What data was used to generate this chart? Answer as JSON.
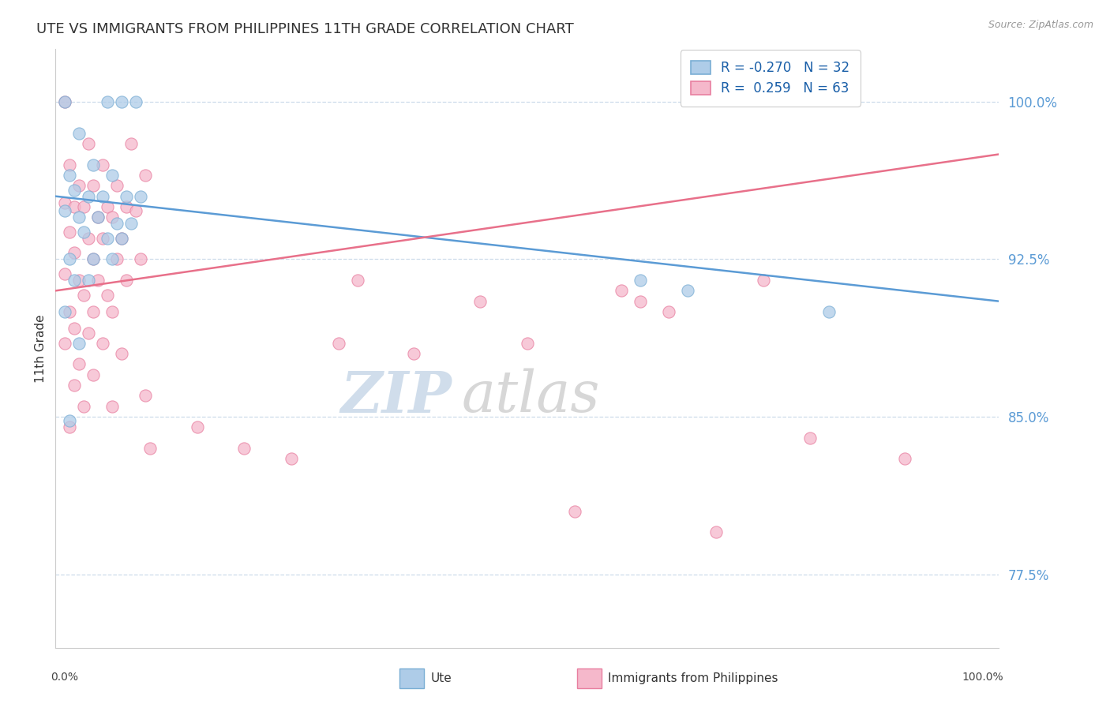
{
  "title": "UTE VS IMMIGRANTS FROM PHILIPPINES 11TH GRADE CORRELATION CHART",
  "source": "Source: ZipAtlas.com",
  "ylabel": "11th Grade",
  "xlim": [
    0.0,
    100.0
  ],
  "ylim": [
    74.0,
    102.5
  ],
  "ytick_labels": [
    "77.5%",
    "85.0%",
    "92.5%",
    "100.0%"
  ],
  "ytick_values": [
    77.5,
    85.0,
    92.5,
    100.0
  ],
  "legend_r_ute": "-0.270",
  "legend_n_ute": "32",
  "legend_r_phil": "0.259",
  "legend_n_phil": "63",
  "ute_color": "#aecce8",
  "phil_color": "#f5b8cb",
  "ute_edge_color": "#7aaed4",
  "phil_edge_color": "#e87fa0",
  "ute_line_color": "#5b9bd5",
  "phil_line_color": "#e8708a",
  "tick_color": "#5b9bd5",
  "background_color": "#ffffff",
  "grid_color": "#c8d8e8",
  "ute_scatter": [
    [
      1.0,
      100.0
    ],
    [
      5.5,
      100.0
    ],
    [
      7.0,
      100.0
    ],
    [
      8.5,
      100.0
    ],
    [
      2.5,
      98.5
    ],
    [
      4.0,
      97.0
    ],
    [
      1.5,
      96.5
    ],
    [
      6.0,
      96.5
    ],
    [
      2.0,
      95.8
    ],
    [
      3.5,
      95.5
    ],
    [
      5.0,
      95.5
    ],
    [
      7.5,
      95.5
    ],
    [
      9.0,
      95.5
    ],
    [
      1.0,
      94.8
    ],
    [
      2.5,
      94.5
    ],
    [
      4.5,
      94.5
    ],
    [
      6.5,
      94.2
    ],
    [
      8.0,
      94.2
    ],
    [
      3.0,
      93.8
    ],
    [
      5.5,
      93.5
    ],
    [
      7.0,
      93.5
    ],
    [
      1.5,
      92.5
    ],
    [
      4.0,
      92.5
    ],
    [
      6.0,
      92.5
    ],
    [
      2.0,
      91.5
    ],
    [
      3.5,
      91.5
    ],
    [
      1.0,
      90.0
    ],
    [
      2.5,
      88.5
    ],
    [
      1.5,
      84.8
    ],
    [
      62.0,
      91.5
    ],
    [
      67.0,
      91.0
    ],
    [
      82.0,
      90.0
    ]
  ],
  "phil_scatter": [
    [
      1.0,
      100.0
    ],
    [
      3.5,
      98.0
    ],
    [
      8.0,
      98.0
    ],
    [
      1.5,
      97.0
    ],
    [
      5.0,
      97.0
    ],
    [
      2.5,
      96.0
    ],
    [
      4.0,
      96.0
    ],
    [
      6.5,
      96.0
    ],
    [
      9.5,
      96.5
    ],
    [
      1.0,
      95.2
    ],
    [
      2.0,
      95.0
    ],
    [
      3.0,
      95.0
    ],
    [
      5.5,
      95.0
    ],
    [
      7.5,
      95.0
    ],
    [
      4.5,
      94.5
    ],
    [
      6.0,
      94.5
    ],
    [
      8.5,
      94.8
    ],
    [
      1.5,
      93.8
    ],
    [
      3.5,
      93.5
    ],
    [
      5.0,
      93.5
    ],
    [
      7.0,
      93.5
    ],
    [
      2.0,
      92.8
    ],
    [
      4.0,
      92.5
    ],
    [
      6.5,
      92.5
    ],
    [
      9.0,
      92.5
    ],
    [
      1.0,
      91.8
    ],
    [
      2.5,
      91.5
    ],
    [
      4.5,
      91.5
    ],
    [
      7.5,
      91.5
    ],
    [
      3.0,
      90.8
    ],
    [
      5.5,
      90.8
    ],
    [
      1.5,
      90.0
    ],
    [
      4.0,
      90.0
    ],
    [
      6.0,
      90.0
    ],
    [
      2.0,
      89.2
    ],
    [
      3.5,
      89.0
    ],
    [
      1.0,
      88.5
    ],
    [
      5.0,
      88.5
    ],
    [
      7.0,
      88.0
    ],
    [
      2.5,
      87.5
    ],
    [
      4.0,
      87.0
    ],
    [
      2.0,
      86.5
    ],
    [
      9.5,
      86.0
    ],
    [
      3.0,
      85.5
    ],
    [
      6.0,
      85.5
    ],
    [
      1.5,
      84.5
    ],
    [
      15.0,
      84.5
    ],
    [
      10.0,
      83.5
    ],
    [
      20.0,
      83.5
    ],
    [
      25.0,
      83.0
    ],
    [
      30.0,
      88.5
    ],
    [
      32.0,
      91.5
    ],
    [
      38.0,
      88.0
    ],
    [
      45.0,
      90.5
    ],
    [
      50.0,
      88.5
    ],
    [
      55.0,
      80.5
    ],
    [
      60.0,
      91.0
    ],
    [
      62.0,
      90.5
    ],
    [
      65.0,
      90.0
    ],
    [
      70.0,
      79.5
    ],
    [
      75.0,
      91.5
    ],
    [
      80.0,
      84.0
    ],
    [
      90.0,
      83.0
    ]
  ],
  "ute_trend": {
    "x_start": 0.0,
    "x_end": 100.0,
    "y_start": 95.5,
    "y_end": 90.5
  },
  "phil_trend": {
    "x_start": 0.0,
    "x_end": 100.0,
    "y_start": 91.0,
    "y_end": 97.5
  }
}
